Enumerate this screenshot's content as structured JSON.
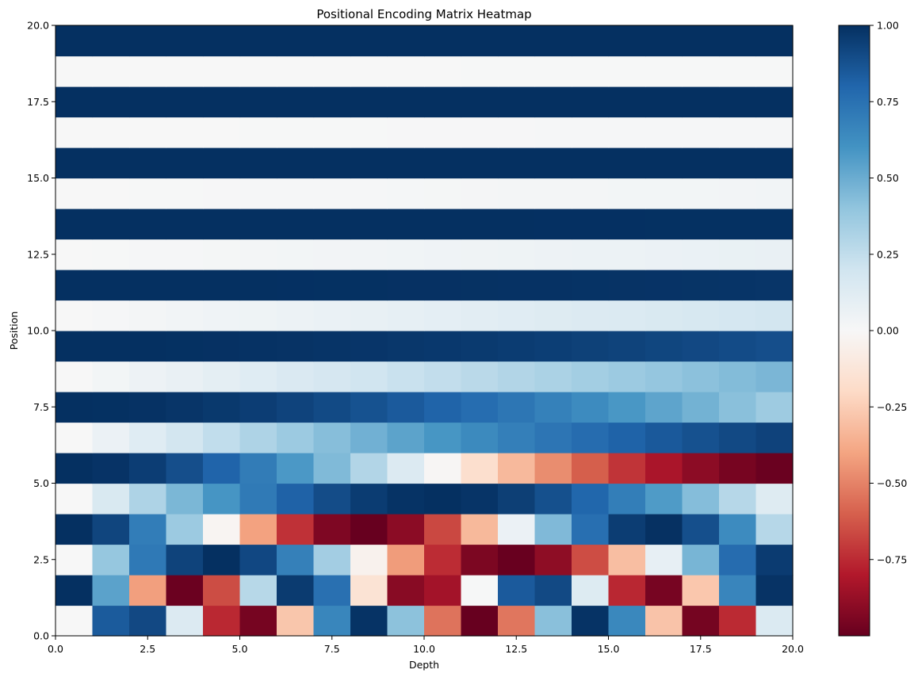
{
  "chart_data": {
    "type": "heatmap",
    "title": "Positional Encoding Matrix Heatmap",
    "xlabel": "Depth",
    "ylabel": "Position",
    "xlim": [
      0,
      20
    ],
    "ylim": [
      0,
      20
    ],
    "x_ticks": [
      0,
      2.5,
      5,
      7.5,
      10,
      12.5,
      15,
      17.5,
      20
    ],
    "x_tick_labels": [
      "0.0",
      "2.5",
      "5.0",
      "7.5",
      "10.0",
      "12.5",
      "15.0",
      "17.5",
      "20.0"
    ],
    "y_ticks": [
      0,
      2.5,
      5,
      7.5,
      10,
      12.5,
      15,
      17.5,
      20
    ],
    "y_tick_labels": [
      "0.0",
      "2.5",
      "5.0",
      "7.5",
      "10.0",
      "12.5",
      "15.0",
      "17.5",
      "20.0"
    ],
    "colormap": "RdBu",
    "color_range": [
      -1,
      1
    ],
    "colorbar_ticks": [
      1.0,
      0.75,
      0.5,
      0.25,
      0.0,
      -0.25,
      -0.5,
      -0.75
    ],
    "colorbar_tick_labels": [
      "1.00",
      "0.75",
      "0.50",
      "0.25",
      "0.00",
      "−0.25",
      "−0.50",
      "−0.75"
    ],
    "colormap_stops": [
      "#67001f",
      "#b2182b",
      "#d6604d",
      "#f4a582",
      "#fddbc7",
      "#f7f7f7",
      "#d1e5f0",
      "#92c5de",
      "#4393c3",
      "#2166ac",
      "#053061"
    ],
    "rows": 20,
    "cols": 20,
    "grid": false
  }
}
